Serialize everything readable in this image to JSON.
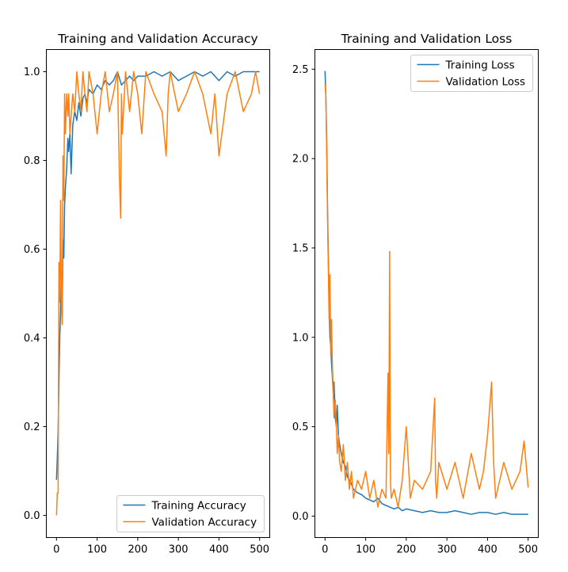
{
  "chart_data": [
    {
      "type": "line",
      "title": "Training and Validation Accuracy",
      "xlabel": "",
      "ylabel": "",
      "xlim": [
        -25,
        525
      ],
      "ylim": [
        -0.05,
        1.05
      ],
      "xticks": [
        0,
        100,
        200,
        300,
        400,
        500
      ],
      "yticks": [
        0.0,
        0.2,
        0.4,
        0.6,
        0.8,
        1.0
      ],
      "xtick_labels": [
        "0",
        "100",
        "200",
        "300",
        "400",
        "500"
      ],
      "ytick_labels": [
        "0.0",
        "0.2",
        "0.4",
        "0.6",
        "0.8",
        "1.0"
      ],
      "legend_position": "lower right",
      "grid": false,
      "series": [
        {
          "name": "Training Accuracy",
          "color": "#1f77b4",
          "x": [
            0,
            2,
            4,
            6,
            8,
            10,
            12,
            14,
            16,
            18,
            20,
            22,
            25,
            28,
            30,
            33,
            36,
            40,
            45,
            50,
            55,
            60,
            65,
            70,
            75,
            80,
            90,
            100,
            110,
            120,
            130,
            140,
            150,
            160,
            170,
            180,
            190,
            200,
            220,
            240,
            260,
            280,
            300,
            320,
            340,
            360,
            380,
            400,
            420,
            440,
            460,
            480,
            500
          ],
          "y": [
            0.08,
            0.13,
            0.19,
            0.3,
            0.4,
            0.46,
            0.55,
            0.45,
            0.62,
            0.58,
            0.7,
            0.74,
            0.78,
            0.85,
            0.82,
            0.86,
            0.77,
            0.88,
            0.91,
            0.89,
            0.93,
            0.9,
            0.94,
            0.95,
            0.93,
            0.96,
            0.95,
            0.97,
            0.96,
            0.98,
            0.97,
            0.98,
            1.0,
            0.97,
            0.98,
            0.99,
            0.98,
            0.99,
            0.99,
            1.0,
            0.99,
            1.0,
            0.98,
            0.99,
            1.0,
            0.99,
            1.0,
            0.98,
            1.0,
            0.99,
            1.0,
            1.0,
            1.0
          ]
        },
        {
          "name": "Validation Accuracy",
          "color": "#ff7f0e",
          "x": [
            0,
            2,
            4,
            6,
            8,
            10,
            12,
            14,
            16,
            18,
            20,
            22,
            25,
            28,
            30,
            33,
            36,
            40,
            45,
            50,
            55,
            60,
            65,
            70,
            75,
            80,
            90,
            100,
            110,
            120,
            130,
            140,
            150,
            155,
            158,
            160,
            162,
            170,
            180,
            190,
            200,
            210,
            220,
            240,
            260,
            265,
            270,
            275,
            280,
            300,
            320,
            340,
            360,
            380,
            390,
            400,
            420,
            440,
            460,
            480,
            490,
            500
          ],
          "y": [
            0.0,
            0.05,
            0.05,
            0.57,
            0.48,
            0.71,
            0.48,
            0.43,
            0.81,
            0.71,
            0.95,
            0.86,
            0.95,
            0.9,
            0.95,
            0.86,
            0.9,
            0.95,
            0.91,
            1.0,
            0.95,
            0.91,
            1.0,
            0.95,
            0.91,
            1.0,
            0.95,
            0.86,
            0.95,
            1.0,
            0.91,
            0.95,
            1.0,
            0.76,
            0.67,
            0.95,
            0.86,
            1.0,
            0.91,
            1.0,
            0.95,
            0.86,
            1.0,
            0.95,
            0.91,
            0.86,
            0.81,
            0.95,
            1.0,
            0.91,
            0.95,
            1.0,
            0.95,
            0.86,
            0.95,
            0.81,
            0.95,
            1.0,
            0.91,
            0.95,
            1.0,
            0.95
          ]
        }
      ]
    },
    {
      "type": "line",
      "title": "Training and Validation Loss",
      "xlabel": "",
      "ylabel": "",
      "xlim": [
        -25,
        525
      ],
      "ylim": [
        -0.12,
        2.61
      ],
      "xticks": [
        0,
        100,
        200,
        300,
        400,
        500
      ],
      "yticks": [
        0.0,
        0.5,
        1.0,
        1.5,
        2.0,
        2.5
      ],
      "xtick_labels": [
        "0",
        "100",
        "200",
        "300",
        "400",
        "500"
      ],
      "ytick_labels": [
        "0.0",
        "0.5",
        "1.0",
        "1.5",
        "2.0",
        "2.5"
      ],
      "legend_position": "upper right",
      "grid": false,
      "series": [
        {
          "name": "Training Loss",
          "color": "#1f77b4",
          "x": [
            0,
            2,
            4,
            6,
            8,
            10,
            12,
            14,
            16,
            18,
            20,
            22,
            25,
            28,
            30,
            33,
            36,
            40,
            45,
            50,
            55,
            60,
            65,
            70,
            80,
            90,
            100,
            110,
            120,
            130,
            140,
            150,
            160,
            170,
            180,
            190,
            200,
            220,
            240,
            260,
            280,
            300,
            320,
            340,
            360,
            380,
            400,
            420,
            440,
            460,
            480,
            500
          ],
          "y": [
            2.49,
            2.35,
            2.1,
            1.75,
            1.45,
            1.2,
            1.0,
            0.95,
            0.85,
            0.78,
            0.7,
            0.75,
            0.55,
            0.5,
            0.62,
            0.45,
            0.4,
            0.35,
            0.3,
            0.28,
            0.22,
            0.2,
            0.18,
            0.15,
            0.13,
            0.12,
            0.1,
            0.09,
            0.08,
            0.1,
            0.07,
            0.06,
            0.05,
            0.04,
            0.05,
            0.03,
            0.04,
            0.03,
            0.02,
            0.03,
            0.02,
            0.02,
            0.03,
            0.02,
            0.01,
            0.02,
            0.02,
            0.01,
            0.02,
            0.01,
            0.01,
            0.01
          ]
        },
        {
          "name": "Validation Loss",
          "color": "#ff7f0e",
          "x": [
            0,
            2,
            4,
            6,
            8,
            10,
            12,
            14,
            16,
            18,
            20,
            22,
            25,
            28,
            30,
            33,
            36,
            40,
            45,
            50,
            55,
            60,
            65,
            70,
            80,
            90,
            100,
            110,
            120,
            130,
            140,
            150,
            155,
            157,
            159,
            161,
            163,
            170,
            180,
            190,
            200,
            210,
            220,
            240,
            260,
            270,
            272,
            275,
            280,
            300,
            320,
            340,
            360,
            380,
            390,
            400,
            410,
            415,
            420,
            440,
            460,
            480,
            490,
            500
          ],
          "y": [
            2.42,
            2.35,
            2.05,
            1.7,
            1.4,
            1.1,
            1.35,
            0.9,
            1.1,
            0.85,
            0.7,
            0.55,
            0.65,
            0.5,
            0.35,
            0.45,
            0.3,
            0.25,
            0.4,
            0.2,
            0.3,
            0.15,
            0.25,
            0.1,
            0.2,
            0.15,
            0.25,
            0.1,
            0.2,
            0.05,
            0.15,
            0.1,
            0.8,
            0.35,
            1.48,
            0.2,
            0.1,
            0.15,
            0.05,
            0.2,
            0.5,
            0.1,
            0.2,
            0.15,
            0.25,
            0.66,
            0.2,
            0.1,
            0.3,
            0.15,
            0.3,
            0.1,
            0.35,
            0.15,
            0.25,
            0.45,
            0.75,
            0.3,
            0.1,
            0.3,
            0.15,
            0.25,
            0.42,
            0.16
          ]
        }
      ]
    }
  ]
}
